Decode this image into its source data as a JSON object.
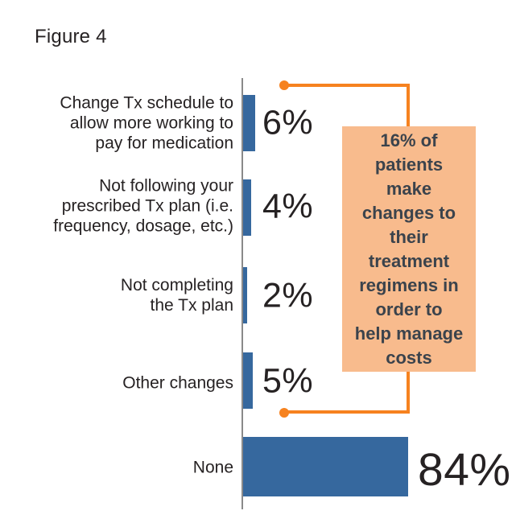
{
  "figure": {
    "title": "Figure 4"
  },
  "chart_data": {
    "type": "bar",
    "orientation": "horizontal",
    "title": "Figure 4",
    "categories": [
      "Change Tx schedule to\nallow more working to\npay for medication",
      "Not following your\nprescribed Tx plan (i.e.\nfrequency, dosage, etc.)",
      "Not completing\nthe Tx plan",
      "Other changes",
      "None"
    ],
    "values": [
      6,
      4,
      2,
      5,
      84
    ],
    "value_labels": [
      "6%",
      "4%",
      "2%",
      "5%",
      "84%"
    ],
    "unit": "percent",
    "xlim": [
      0,
      100
    ],
    "grid": false,
    "annotation": {
      "text": "16% of\npatients\nmake\nchanges to\ntheir\ntreatment\nregimens in\norder to\nhelp manage\ncosts",
      "summary_value": "16%"
    }
  },
  "colors": {
    "bar": "#36689e",
    "accent": "#f6821f",
    "callout_bg": "#f8bb8d",
    "callout_text": "#3b434c",
    "axis": "#8a8a8a",
    "text": "#262223"
  }
}
